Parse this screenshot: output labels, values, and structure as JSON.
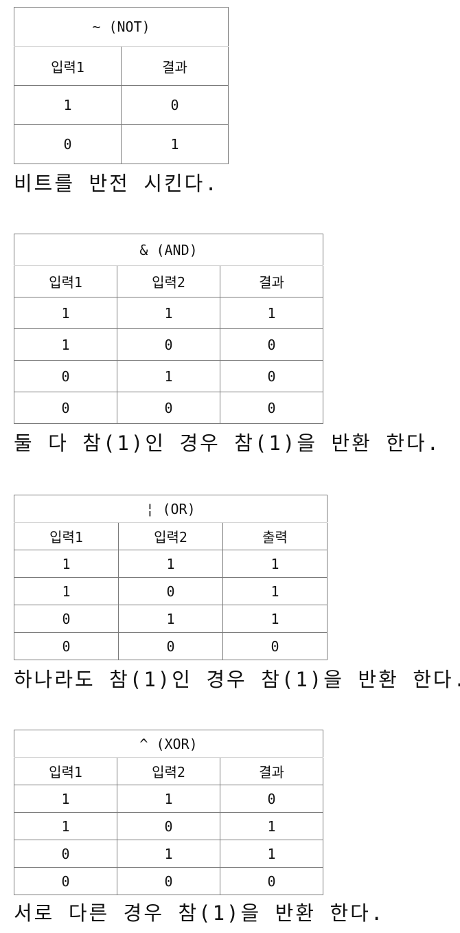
{
  "not_table": {
    "caption": "~ (NOT)",
    "headers": [
      "입력1",
      "결과"
    ],
    "rows": [
      [
        "1",
        "0"
      ],
      [
        "0",
        "1"
      ]
    ],
    "description": "비트를 반전 시킨다."
  },
  "and_table": {
    "caption": "& (AND)",
    "headers": [
      "입력1",
      "입력2",
      "결과"
    ],
    "rows": [
      [
        "1",
        "1",
        "1"
      ],
      [
        "1",
        "0",
        "0"
      ],
      [
        "0",
        "1",
        "0"
      ],
      [
        "0",
        "0",
        "0"
      ]
    ],
    "description": "둘 다 참(1)인 경우 참(1)을 반환 한다."
  },
  "or_table": {
    "caption": "¦ (OR)",
    "headers": [
      "입력1",
      "입력2",
      "출력"
    ],
    "rows": [
      [
        "1",
        "1",
        "1"
      ],
      [
        "1",
        "0",
        "1"
      ],
      [
        "0",
        "1",
        "1"
      ],
      [
        "0",
        "0",
        "0"
      ]
    ],
    "description": "하나라도 참(1)인 경우 참(1)을 반환 한다."
  },
  "xor_table": {
    "caption": "^ (XOR)",
    "headers": [
      "입력1",
      "입력2",
      "결과"
    ],
    "rows": [
      [
        "1",
        "1",
        "0"
      ],
      [
        "1",
        "0",
        "1"
      ],
      [
        "0",
        "1",
        "1"
      ],
      [
        "0",
        "0",
        "0"
      ]
    ],
    "description": "서로 다른 경우 참(1)을 반환 한다."
  }
}
